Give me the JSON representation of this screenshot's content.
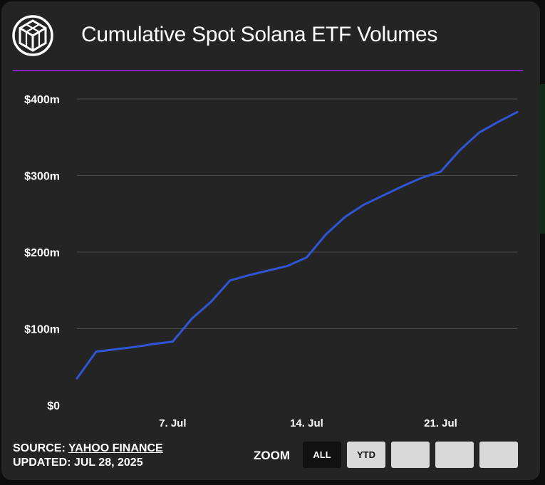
{
  "header": {
    "title": "Cumulative Spot Solana ETF Volumes"
  },
  "footer": {
    "source_prefix": "SOURCE: ",
    "source_link": "YAHOO FINANCE",
    "updated": "UPDATED: JUL 28, 2025"
  },
  "zoom": {
    "label": "ZOOM",
    "buttons": [
      {
        "label": "ALL",
        "active": true
      },
      {
        "label": "YTD",
        "active": false
      },
      {
        "label": "",
        "active": false
      },
      {
        "label": "",
        "active": false
      },
      {
        "label": "",
        "active": false
      }
    ]
  },
  "colors": {
    "background": "#242424",
    "line": "#2f55d4",
    "divider": "#8a1fc4",
    "grid": "#4a4a4a",
    "text": "#ffffff"
  },
  "chart_data": {
    "type": "line",
    "title": "Cumulative Spot Solana ETF Volumes",
    "xlabel": "",
    "ylabel": "",
    "x_ticks": [
      {
        "date": "2025-07-07",
        "label": "7. Jul"
      },
      {
        "date": "2025-07-14",
        "label": "14. Jul"
      },
      {
        "date": "2025-07-21",
        "label": "21. Jul"
      }
    ],
    "y_ticks": [
      {
        "value": 0,
        "label": "$0"
      },
      {
        "value": 100,
        "label": "$100m"
      },
      {
        "value": 200,
        "label": "$200m"
      },
      {
        "value": 300,
        "label": "$300m"
      },
      {
        "value": 400,
        "label": "$400m"
      }
    ],
    "xlim": [
      "2025-07-02",
      "2025-07-25"
    ],
    "ylim": [
      0,
      400
    ],
    "grid": true,
    "series": [
      {
        "values": [
          {
            "x": "2025-07-02",
            "y": 35
          },
          {
            "x": "2025-07-03",
            "y": 70
          },
          {
            "x": "2025-07-04",
            "y": 73
          },
          {
            "x": "2025-07-05",
            "y": 76
          },
          {
            "x": "2025-07-06",
            "y": 80
          },
          {
            "x": "2025-07-07",
            "y": 83
          },
          {
            "x": "2025-07-08",
            "y": 113
          },
          {
            "x": "2025-07-09",
            "y": 135
          },
          {
            "x": "2025-07-10",
            "y": 163
          },
          {
            "x": "2025-07-11",
            "y": 170
          },
          {
            "x": "2025-07-12",
            "y": 176
          },
          {
            "x": "2025-07-13",
            "y": 182
          },
          {
            "x": "2025-07-14",
            "y": 193
          },
          {
            "x": "2025-07-15",
            "y": 223
          },
          {
            "x": "2025-07-16",
            "y": 246
          },
          {
            "x": "2025-07-17",
            "y": 262
          },
          {
            "x": "2025-07-18",
            "y": 274
          },
          {
            "x": "2025-07-19",
            "y": 286
          },
          {
            "x": "2025-07-20",
            "y": 297
          },
          {
            "x": "2025-07-21",
            "y": 305
          },
          {
            "x": "2025-07-22",
            "y": 333
          },
          {
            "x": "2025-07-23",
            "y": 356
          },
          {
            "x": "2025-07-24",
            "y": 370
          },
          {
            "x": "2025-07-25",
            "y": 383
          }
        ]
      }
    ]
  }
}
